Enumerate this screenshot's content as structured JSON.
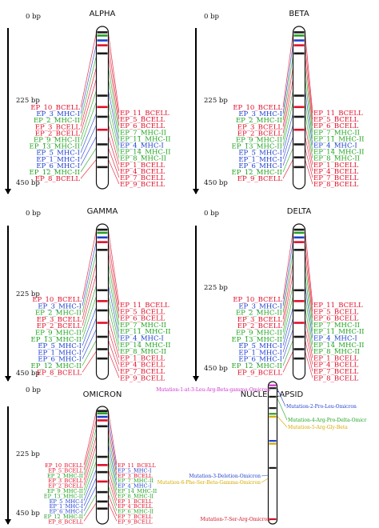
{
  "colors": {
    "bcell": "#e0102a",
    "mhc1": "#1f3fd0",
    "mhc2": "#22a322",
    "magenta": "#cc33cc",
    "gold": "#d4a800",
    "red": "#cc1122",
    "axis": "#000000"
  },
  "panels": [
    {
      "key": "alpha",
      "title": "ALPHA",
      "scale": [
        "0 bp",
        "225 bp",
        "450 bp"
      ],
      "left": [
        {
          "t": "EP_10_BCELL",
          "c": "bcell"
        },
        {
          "t": "EP_3_MHC-I",
          "c": "mhc1"
        },
        {
          "t": "EP_2_MHC-II",
          "c": "mhc2"
        },
        {
          "t": "EP_3_BCELL",
          "c": "bcell"
        },
        {
          "t": "EP_2_BCELL",
          "c": "bcell"
        },
        {
          "t": "EP_9_MHC-II",
          "c": "mhc2"
        },
        {
          "t": "EP_13_MHC-II",
          "c": "mhc2"
        },
        {
          "t": "EP_5_MHC-I",
          "c": "mhc1"
        },
        {
          "t": "EP_1_MHC-I",
          "c": "mhc1"
        },
        {
          "t": "EP_6_MHC-I",
          "c": "mhc1"
        },
        {
          "t": "EP_12_MHC-II",
          "c": "mhc2"
        },
        {
          "t": "EP_8_BCELL",
          "c": "bcell"
        }
      ],
      "right": [
        {
          "t": "EP_11_BCELL",
          "c": "bcell"
        },
        {
          "t": "EP_5_BCELL",
          "c": "bcell"
        },
        {
          "t": "EP_6_BCELL",
          "c": "bcell"
        },
        {
          "t": "EP_7_MHC-II",
          "c": "mhc2"
        },
        {
          "t": "EP_11_MHC-II",
          "c": "mhc2"
        },
        {
          "t": "EP_4_MHC-I",
          "c": "mhc1"
        },
        {
          "t": "EP_14_MHC-II",
          "c": "mhc2"
        },
        {
          "t": "EP_8_MHC-II",
          "c": "mhc2"
        },
        {
          "t": "EP_1_BCELL",
          "c": "bcell"
        },
        {
          "t": "EP_4_BCELL",
          "c": "bcell"
        },
        {
          "t": "EP_7_BCELL",
          "c": "bcell"
        },
        {
          "t": "EP_9_BCELL",
          "c": "bcell"
        }
      ]
    },
    {
      "key": "beta",
      "title": "BETA",
      "scale": [
        "0 bp",
        "225 bp",
        "450 bp"
      ],
      "left": [
        {
          "t": "EP_10_BCELL",
          "c": "bcell"
        },
        {
          "t": "EP_3_MHC-I",
          "c": "mhc1"
        },
        {
          "t": "EP_2_MHC-II",
          "c": "mhc2"
        },
        {
          "t": "EP_3_BCELL",
          "c": "bcell"
        },
        {
          "t": "EP_2_BCELL",
          "c": "bcell"
        },
        {
          "t": "EP_9_MHC-II",
          "c": "mhc2"
        },
        {
          "t": "EP_13_MHC-II",
          "c": "mhc2"
        },
        {
          "t": "EP_5_MHC-I",
          "c": "mhc1"
        },
        {
          "t": "EP_1_MHC-I",
          "c": "mhc1"
        },
        {
          "t": "EP_6_MHC-I",
          "c": "mhc1"
        },
        {
          "t": "EP_12_MHC-II",
          "c": "mhc2"
        },
        {
          "t": "EP_9_BCELL",
          "c": "bcell"
        }
      ],
      "right": [
        {
          "t": "EP_11_BCELL",
          "c": "bcell"
        },
        {
          "t": "EP_5_BCELL",
          "c": "bcell"
        },
        {
          "t": "EP_6_BCELL",
          "c": "bcell"
        },
        {
          "t": "EP_7_MHC-II",
          "c": "mhc2"
        },
        {
          "t": "EP_11_MHC-II",
          "c": "mhc2"
        },
        {
          "t": "EP_4_MHC-I",
          "c": "mhc1"
        },
        {
          "t": "EP_14_MHC-II",
          "c": "mhc2"
        },
        {
          "t": "EP_8_MHC-II",
          "c": "mhc2"
        },
        {
          "t": "EP_1_BCELL",
          "c": "bcell"
        },
        {
          "t": "EP_4_BCELL",
          "c": "bcell"
        },
        {
          "t": "EP_7_BCELL",
          "c": "bcell"
        },
        {
          "t": "EP_8_BCELL",
          "c": "bcell"
        }
      ]
    },
    {
      "key": "gamma",
      "title": "GAMMA",
      "scale": [
        "0 bp",
        "225 bp",
        "450 bp"
      ],
      "left": [
        {
          "t": "EP_10_BCELL",
          "c": "bcell"
        },
        {
          "t": "EP_3_MHC-I",
          "c": "mhc1"
        },
        {
          "t": "EP_2_MHC-II",
          "c": "mhc2"
        },
        {
          "t": "EP_3_BCELL",
          "c": "bcell"
        },
        {
          "t": "EP_2_BCELL",
          "c": "bcell"
        },
        {
          "t": "EP_9_MHC-II",
          "c": "mhc2"
        },
        {
          "t": "EP_13_MHC-II",
          "c": "mhc2"
        },
        {
          "t": "EP_5_MHC-I",
          "c": "mhc1"
        },
        {
          "t": "EP_1_MHC-I",
          "c": "mhc1"
        },
        {
          "t": "EP_6_MHC-I",
          "c": "mhc1"
        },
        {
          "t": "EP_12_MHC-II",
          "c": "mhc2"
        },
        {
          "t": "EP_8_BCELL",
          "c": "bcell"
        }
      ],
      "right": [
        {
          "t": "EP_11_BCELL",
          "c": "bcell"
        },
        {
          "t": "EP_5_BCELL",
          "c": "bcell"
        },
        {
          "t": "EP_6_BCELL",
          "c": "bcell"
        },
        {
          "t": "EP_7_MHC-II",
          "c": "mhc2"
        },
        {
          "t": "EP_11_MHC-II",
          "c": "mhc2"
        },
        {
          "t": "EP_4_MHC-I",
          "c": "mhc1"
        },
        {
          "t": "EP_14_MHC-II",
          "c": "mhc2"
        },
        {
          "t": "EP_8_MHC-II",
          "c": "mhc2"
        },
        {
          "t": "EP_1_BCELL",
          "c": "bcell"
        },
        {
          "t": "EP_4_BCELL",
          "c": "bcell"
        },
        {
          "t": "EP_7_BCELL",
          "c": "bcell"
        },
        {
          "t": "EP_9_BCELL",
          "c": "bcell"
        }
      ]
    },
    {
      "key": "delta",
      "title": "DELTA",
      "scale": [
        "0 bp",
        "225 bp",
        "450 bp"
      ],
      "left": [
        {
          "t": "EP_10_BCELL",
          "c": "bcell"
        },
        {
          "t": "EP_3_MHC-I",
          "c": "mhc1"
        },
        {
          "t": "EP_2_MHC-II",
          "c": "mhc2"
        },
        {
          "t": "EP_3_BCELL",
          "c": "bcell"
        },
        {
          "t": "EP_2_BCELL",
          "c": "bcell"
        },
        {
          "t": "EP_9_MHC-II",
          "c": "mhc2"
        },
        {
          "t": "EP_13_MHC-II",
          "c": "mhc2"
        },
        {
          "t": "EP_5_MHC-I",
          "c": "mhc1"
        },
        {
          "t": "EP_1_MHC-I",
          "c": "mhc1"
        },
        {
          "t": "EP_6_MHC-I",
          "c": "mhc1"
        },
        {
          "t": "EP_12_MHC-II",
          "c": "mhc2"
        },
        {
          "t": "EP_9_BCELL",
          "c": "bcell"
        }
      ],
      "right": [
        {
          "t": "EP_11_BCELL",
          "c": "bcell"
        },
        {
          "t": "EP_5_BCELL",
          "c": "bcell"
        },
        {
          "t": "EP_6_BCELL",
          "c": "bcell"
        },
        {
          "t": "EP_7_MHC-II",
          "c": "mhc2"
        },
        {
          "t": "EP_11_MHC-II",
          "c": "mhc2"
        },
        {
          "t": "EP_4_MHC-I",
          "c": "mhc1"
        },
        {
          "t": "EP_14_MHC-II",
          "c": "mhc2"
        },
        {
          "t": "EP_8_MHC-II",
          "c": "mhc2"
        },
        {
          "t": "EP_1_BCELL",
          "c": "bcell"
        },
        {
          "t": "EP_4_BCELL",
          "c": "bcell"
        },
        {
          "t": "EP_7_BCELL",
          "c": "bcell"
        },
        {
          "t": "EP_8_BCELL",
          "c": "bcell"
        }
      ]
    },
    {
      "key": "omicron",
      "title": "OMICRON",
      "scale": [
        "0 bp",
        "225 bp",
        "450 bp"
      ],
      "left": [
        {
          "t": "EP_10_BCELL",
          "c": "bcell"
        },
        {
          "t": "EP_5_BCELL",
          "c": "bcell"
        },
        {
          "t": "EP_2_MHC-II",
          "c": "mhc2"
        },
        {
          "t": "EP_3_BCELL",
          "c": "bcell"
        },
        {
          "t": "EP_2_BCELL",
          "c": "bcell"
        },
        {
          "t": "EP_9_MHC-II",
          "c": "mhc2"
        },
        {
          "t": "EP_13_MHC-II",
          "c": "mhc2"
        },
        {
          "t": "EP_5_MHC-I",
          "c": "mhc1"
        },
        {
          "t": "EP_1_MHC-I",
          "c": "mhc1"
        },
        {
          "t": "EP_6_MHC-I",
          "c": "mhc1"
        },
        {
          "t": "EP_12_MHC-II",
          "c": "mhc2"
        },
        {
          "t": "EP_8_BCELL",
          "c": "bcell"
        }
      ],
      "right": [
        {
          "t": "EP_11_BCELL",
          "c": "bcell"
        },
        {
          "t": "EP_5_MHC-I",
          "c": "mhc1"
        },
        {
          "t": "EP_3_BCELL",
          "c": "bcell"
        },
        {
          "t": "EP_7_MHC-II",
          "c": "mhc2"
        },
        {
          "t": "EP_4_MHC-I",
          "c": "mhc1"
        },
        {
          "t": "EP_14_MHC-II",
          "c": "mhc2"
        },
        {
          "t": "EP_8_MHC-II",
          "c": "mhc2"
        },
        {
          "t": "EP_1_BCELL",
          "c": "bcell"
        },
        {
          "t": "EP_4_BCELL",
          "c": "bcell"
        },
        {
          "t": "EP_6_MHC-II",
          "c": "mhc2"
        },
        {
          "t": "EP_7_BCELL",
          "c": "bcell"
        },
        {
          "t": "EP_9_BCELL",
          "c": "bcell"
        }
      ]
    }
  ],
  "nucleocapsid": {
    "title": "NUCLEOCAPSID",
    "mutations": [
      {
        "t": "Mutation-1-at-3-Leu-Arg-Beta-gamma-Omicron",
        "c": "magenta"
      },
      {
        "t": "Mutation-2-Pro-Leu-Omicron",
        "c": "mhc1"
      },
      {
        "t": "Mutation-4-Arg-Pro-Delta-Omicr",
        "c": "mhc2"
      },
      {
        "t": "Mutation-5-Arg-Gly-Beta",
        "c": "gold"
      },
      {
        "t": "Mutation-3-Deletion-Omicron",
        "c": "mhc1"
      },
      {
        "t": "Mutation-6-Phe-Ser-Beta-Gamma-Omicron",
        "c": "gold"
      },
      {
        "t": "Mutation-7-Ser-Arg-Omicron",
        "c": "red"
      }
    ]
  }
}
